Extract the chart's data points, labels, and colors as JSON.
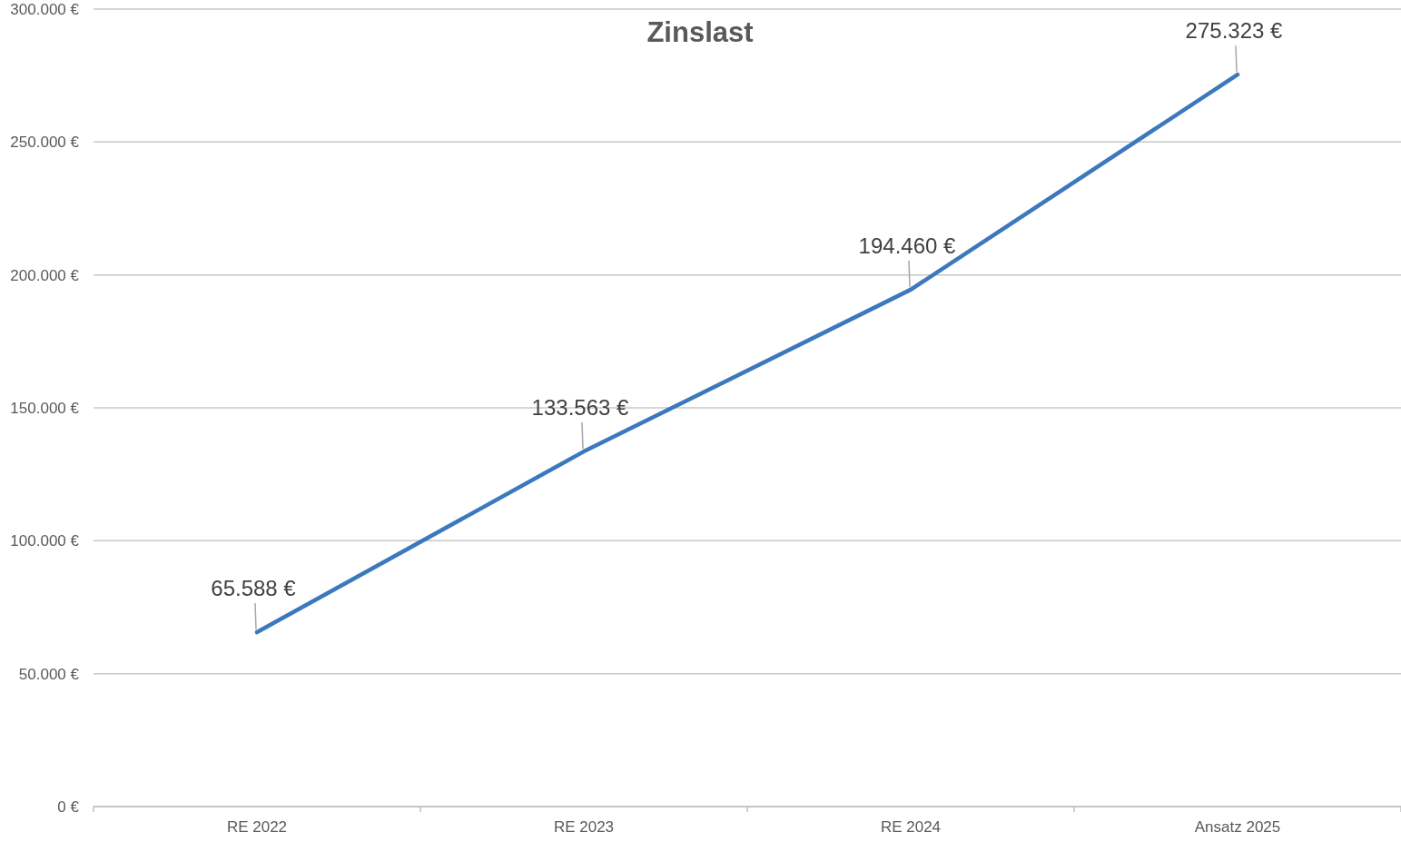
{
  "chart_data": {
    "type": "line",
    "title": "Zinslast",
    "categories": [
      "RE 2022",
      "RE 2023",
      "RE 2024",
      "Ansatz 2025"
    ],
    "series": [
      {
        "color": "#3b78bd",
        "values": [
          65588,
          133563,
          194460,
          275323
        ],
        "value_labels": [
          "65.588 €",
          "133.563 €",
          "194.460 €",
          "275.323 €"
        ]
      }
    ],
    "ylim": [
      0,
      300000
    ],
    "yticks": [
      {
        "value": 0,
        "label": "0 €"
      },
      {
        "value": 50000,
        "label": "50.000 €"
      },
      {
        "value": 100000,
        "label": "100.000 €"
      },
      {
        "value": 150000,
        "label": "150.000 €"
      },
      {
        "value": 200000,
        "label": "200.000 €"
      },
      {
        "value": 250000,
        "label": "250.000 €"
      },
      {
        "value": 300000,
        "label": "300.000 €"
      }
    ],
    "grid": "y",
    "marker": "none",
    "line_style": "solid"
  }
}
